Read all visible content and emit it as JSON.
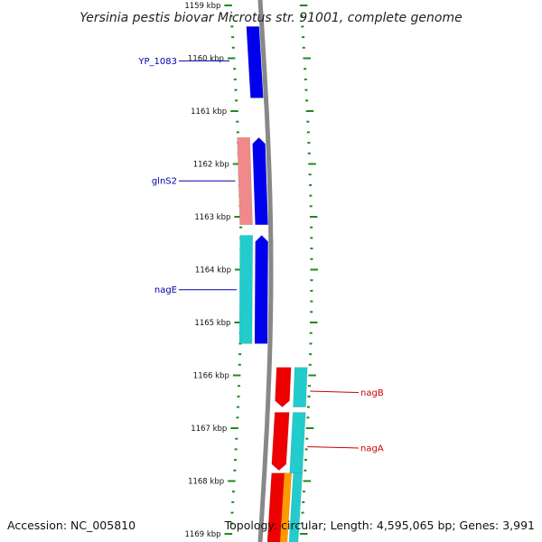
{
  "title": "Yersinia pestis biovar Microtus str. 91001, complete genome",
  "footer": {
    "accession": "Accession: NC_005810",
    "topology": "Topology: circular; Length: 4,595,065 bp; Genes: 3,991"
  },
  "colors": {
    "backbone": "#888888",
    "tick": "#1e8a1e",
    "forward_cds": "#0000ee",
    "rrna_like": "#f08a8a",
    "cyan_feature": "#22cccc",
    "red_feature": "#ee0000",
    "orange_feature": "#ff9900",
    "label_forward": "#0000aa",
    "label_reverse": "#cc0000"
  },
  "chart_data": {
    "type": "linear-genome-map",
    "units": "kbp",
    "visible_range_kbp": [
      1159,
      1169
    ],
    "tick_labels": [
      {
        "kbp": 1159,
        "label": "1159 kbp"
      },
      {
        "kbp": 1160,
        "label": "1160 kbp"
      },
      {
        "kbp": 1161,
        "label": "1161 kbp"
      },
      {
        "kbp": 1162,
        "label": "1162 kbp"
      },
      {
        "kbp": 1163,
        "label": "1163 kbp"
      },
      {
        "kbp": 1164,
        "label": "1164 kbp"
      },
      {
        "kbp": 1165,
        "label": "1165 kbp"
      },
      {
        "kbp": 1166,
        "label": "1166 kbp"
      },
      {
        "kbp": 1167,
        "label": "1167 kbp"
      },
      {
        "kbp": 1168,
        "label": "1168 kbp"
      },
      {
        "kbp": 1169,
        "label": "1169 kbp"
      }
    ],
    "features": [
      {
        "id": "f1",
        "track": "left-inner",
        "color": "forward_cds",
        "start_kbp": 1159.4,
        "end_kbp": 1160.75,
        "arrow": "none"
      },
      {
        "id": "f2",
        "track": "left-outer",
        "color": "rrna_like",
        "start_kbp": 1161.5,
        "end_kbp": 1163.15,
        "arrow": "none"
      },
      {
        "id": "f3",
        "track": "left-inner",
        "color": "forward_cds",
        "start_kbp": 1161.5,
        "end_kbp": 1163.15,
        "arrow": "up"
      },
      {
        "id": "f4",
        "track": "left-outer",
        "color": "cyan_feature",
        "start_kbp": 1163.35,
        "end_kbp": 1165.4,
        "arrow": "none"
      },
      {
        "id": "f5",
        "track": "left-inner",
        "color": "forward_cds",
        "start_kbp": 1163.35,
        "end_kbp": 1165.4,
        "arrow": "up"
      },
      {
        "id": "f6",
        "track": "right-inner",
        "color": "red_feature",
        "start_kbp": 1165.85,
        "end_kbp": 1166.6,
        "arrow": "down"
      },
      {
        "id": "f7",
        "track": "right-outer",
        "color": "cyan_feature",
        "start_kbp": 1165.85,
        "end_kbp": 1166.6,
        "arrow": "none"
      },
      {
        "id": "f8",
        "track": "right-inner",
        "color": "red_feature",
        "start_kbp": 1166.7,
        "end_kbp": 1167.8,
        "arrow": "down"
      },
      {
        "id": "f9",
        "track": "right-outer",
        "color": "cyan_feature",
        "start_kbp": 1166.7,
        "end_kbp": 1167.85,
        "arrow": "none"
      },
      {
        "id": "f10",
        "track": "right-inner",
        "color": "red_feature",
        "start_kbp": 1167.85,
        "end_kbp": 1169.2,
        "arrow": "none"
      },
      {
        "id": "f11",
        "track": "right-outer",
        "color": "orange_feature",
        "start_kbp": 1167.85,
        "end_kbp": 1169.2,
        "arrow": "none"
      },
      {
        "id": "f12",
        "track": "right-outer2",
        "color": "cyan_feature",
        "start_kbp": 1167.85,
        "end_kbp": 1169.2,
        "arrow": "none"
      }
    ],
    "gene_labels": [
      {
        "text": "YP_1083",
        "side": "left",
        "kbp": 1160.05
      },
      {
        "text": "glnS2",
        "side": "left",
        "kbp": 1162.32
      },
      {
        "text": "nagE",
        "side": "left",
        "kbp": 1164.38
      },
      {
        "text": "nagB",
        "side": "right",
        "kbp": 1166.3
      },
      {
        "text": "nagA",
        "side": "right",
        "kbp": 1167.35
      }
    ]
  }
}
